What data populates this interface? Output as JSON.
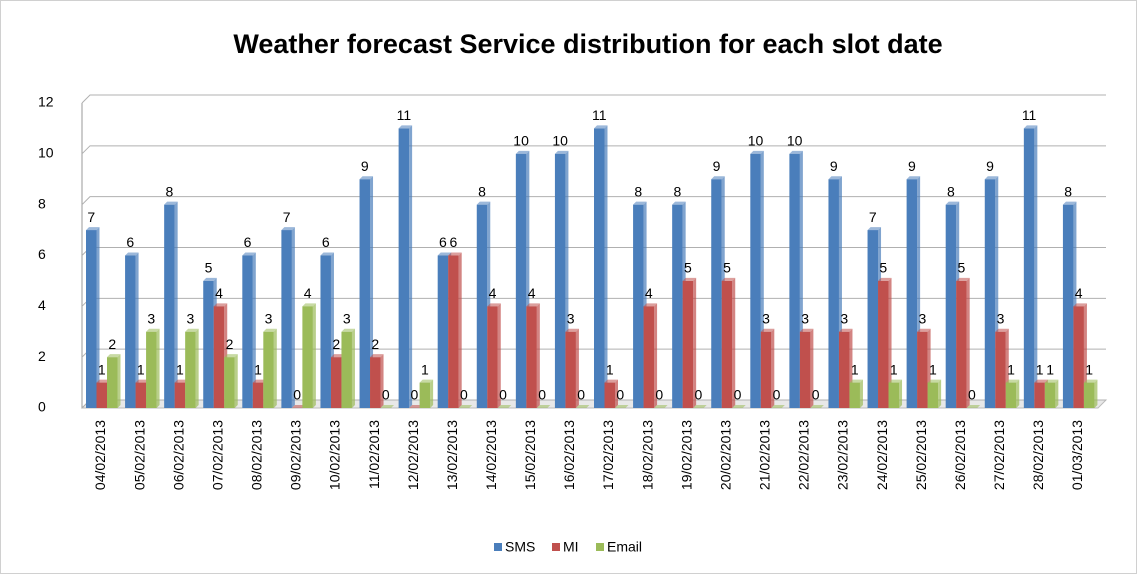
{
  "chart_data": {
    "type": "bar",
    "title": "Weather forecast Service distribution  for each slot date",
    "categories": [
      "04/02/2013",
      "05/02/2013",
      "06/02/2013",
      "07/02/2013",
      "08/02/2013",
      "09/02/2013",
      "10/02/2013",
      "11/02/2013",
      "12/02/2013",
      "13/02/2013",
      "14/02/2013",
      "15/02/2013",
      "16/02/2013",
      "17/02/2013",
      "18/02/2013",
      "19/02/2013",
      "20/02/2013",
      "21/02/2013",
      "22/02/2013",
      "23/02/2013",
      "24/02/2013",
      "25/02/2013",
      "26/02/2013",
      "27/02/2013",
      "28/02/2013",
      "01/03/2013"
    ],
    "series": [
      {
        "name": "SMS",
        "color": "#4a7ebb",
        "values": [
          7,
          6,
          8,
          5,
          6,
          7,
          6,
          9,
          11,
          6,
          8,
          10,
          10,
          11,
          8,
          8,
          9,
          10,
          10,
          9,
          7,
          9,
          8,
          9,
          11,
          8
        ]
      },
      {
        "name": "MI",
        "color": "#c0504d",
        "values": [
          1,
          1,
          1,
          4,
          1,
          0,
          2,
          2,
          0,
          6,
          4,
          4,
          3,
          1,
          4,
          5,
          5,
          3,
          3,
          3,
          5,
          3,
          5,
          3,
          1,
          4
        ]
      },
      {
        "name": "Email",
        "color": "#9bbb59",
        "values": [
          2,
          3,
          3,
          2,
          3,
          4,
          3,
          0,
          1,
          0,
          0,
          0,
          0,
          0,
          0,
          0,
          0,
          0,
          0,
          1,
          1,
          1,
          0,
          1,
          1,
          1
        ]
      }
    ],
    "ylim": [
      0,
      12
    ],
    "yticks": [
      0,
      2,
      4,
      6,
      8,
      10,
      12
    ],
    "grid": true,
    "legend": "bottom"
  }
}
